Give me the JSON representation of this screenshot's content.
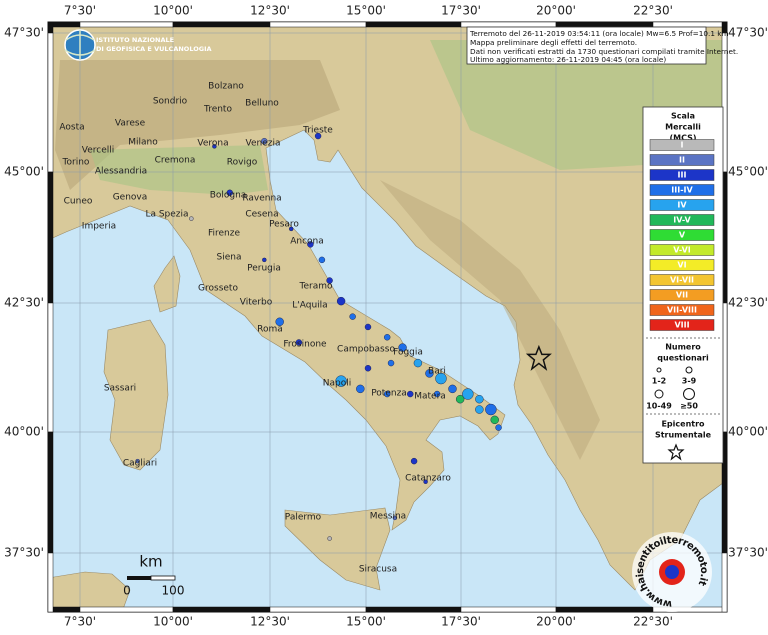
{
  "header": {
    "institute": [
      "ISTITUTO NAZIONALE",
      "DI GEOFISICA E VULCANOLOGIA"
    ]
  },
  "info": [
    "Terremoto del 26-11-2019 03:54:11 (ora locale) Mw=6.5 Prof=10.1 km",
    "Mappa preliminare degli effetti del terremoto.",
    "Dati non verificati estratti da 1730 questionari compilati tramite Internet.",
    "Ultimo aggiornamento: 26-11-2019 04:45 (ora locale)"
  ],
  "longitudes": [
    "7°30'",
    "10°00'",
    "12°30'",
    "15°00'",
    "17°30'",
    "20°00'",
    "22°30'"
  ],
  "latitudes": [
    "47°30'",
    "45°00'",
    "42°30'",
    "40°00'",
    "37°30'"
  ],
  "cities": [
    "Bolzano",
    "Trento",
    "Belluno",
    "Sondrio",
    "Aosta",
    "Varese",
    "Trieste",
    "Milano",
    "Verona",
    "Venezia",
    "Vercelli",
    "Torino",
    "Cremona",
    "Rovigo",
    "Alessandria",
    "Ravenna",
    "Bologna",
    "Cuneo",
    "Genova",
    "Cesena",
    "Pesaro",
    "La Spezia",
    "Imperia",
    "Firenze",
    "Ancona",
    "Siena",
    "Perugia",
    "Teramo",
    "Grosseto",
    "L'Aquila",
    "Viterbo",
    "Roma",
    "Frosinone",
    "Campobasso",
    "Foggia",
    "Bari",
    "Sassari",
    "Napoli",
    "Potenza",
    "Matera",
    "Cagliari",
    "Catanzaro",
    "Palermo",
    "Messina",
    "Siracusa"
  ],
  "legend": {
    "title": [
      "Scala",
      "Mercalli",
      "(MCS)"
    ],
    "levels": [
      {
        "label": "I",
        "color": "#b9b9b9"
      },
      {
        "label": "II",
        "color": "#5b74c4"
      },
      {
        "label": "III",
        "color": "#1c35c8"
      },
      {
        "label": "III-IV",
        "color": "#1f6fe8"
      },
      {
        "label": "IV",
        "color": "#27a3ee"
      },
      {
        "label": "IV-V",
        "color": "#21b85a"
      },
      {
        "label": "V",
        "color": "#2fdc34"
      },
      {
        "label": "V-VI",
        "color": "#c3ea2a"
      },
      {
        "label": "VI",
        "color": "#f3ec27"
      },
      {
        "label": "VI-VII",
        "color": "#f3c530"
      },
      {
        "label": "VII",
        "color": "#f39d22"
      },
      {
        "label": "VII-VIII",
        "color": "#f0651b"
      },
      {
        "label": "VIII",
        "color": "#e3241a"
      }
    ],
    "size_title": [
      "Numero",
      "questionari"
    ],
    "sizes": [
      "1-2",
      "3-9",
      "10-49",
      "≥50"
    ],
    "epicenter_title": [
      "Epicentro",
      "Strumentale"
    ]
  },
  "scale": {
    "unit": "km",
    "ticks": [
      "0",
      "100"
    ]
  },
  "watermark": "www.haisentitoilterremoto.it",
  "epicenter": {
    "lon": 19.45,
    "lat": 41.3
  },
  "points": [
    {
      "lon": 13.0,
      "lat": 43.8,
      "level": 2,
      "size": 0
    },
    {
      "lon": 13.5,
      "lat": 43.5,
      "level": 2,
      "size": 1
    },
    {
      "lon": 13.8,
      "lat": 43.2,
      "level": 3,
      "size": 1
    },
    {
      "lon": 14.0,
      "lat": 42.8,
      "level": 2,
      "size": 1
    },
    {
      "lon": 14.3,
      "lat": 42.4,
      "level": 2,
      "size": 2
    },
    {
      "lon": 14.6,
      "lat": 42.1,
      "level": 3,
      "size": 1
    },
    {
      "lon": 15.0,
      "lat": 41.9,
      "level": 2,
      "size": 1
    },
    {
      "lon": 15.5,
      "lat": 41.7,
      "level": 3,
      "size": 1
    },
    {
      "lon": 15.9,
      "lat": 41.5,
      "level": 3,
      "size": 2
    },
    {
      "lon": 16.3,
      "lat": 41.2,
      "level": 4,
      "size": 2
    },
    {
      "lon": 16.6,
      "lat": 41.0,
      "level": 3,
      "size": 2
    },
    {
      "lon": 16.9,
      "lat": 40.9,
      "level": 4,
      "size": 3
    },
    {
      "lon": 17.2,
      "lat": 40.7,
      "level": 3,
      "size": 2
    },
    {
      "lon": 17.6,
      "lat": 40.6,
      "level": 4,
      "size": 3
    },
    {
      "lon": 17.9,
      "lat": 40.5,
      "level": 4,
      "size": 2
    },
    {
      "lon": 18.2,
      "lat": 40.3,
      "level": 3,
      "size": 3
    },
    {
      "lon": 18.3,
      "lat": 40.1,
      "level": 5,
      "size": 2
    },
    {
      "lon": 18.4,
      "lat": 39.95,
      "level": 3,
      "size": 1
    },
    {
      "lon": 17.9,
      "lat": 40.3,
      "level": 4,
      "size": 2
    },
    {
      "lon": 17.4,
      "lat": 40.5,
      "level": 5,
      "size": 2
    },
    {
      "lon": 16.8,
      "lat": 40.6,
      "level": 3,
      "size": 1
    },
    {
      "lon": 16.1,
      "lat": 40.6,
      "level": 2,
      "size": 1
    },
    {
      "lon": 15.5,
      "lat": 40.6,
      "level": 3,
      "size": 1
    },
    {
      "lon": 14.8,
      "lat": 40.7,
      "level": 3,
      "size": 2
    },
    {
      "lon": 14.3,
      "lat": 40.85,
      "level": 4,
      "size": 3
    },
    {
      "lon": 15.0,
      "lat": 41.1,
      "level": 2,
      "size": 1
    },
    {
      "lon": 15.6,
      "lat": 41.2,
      "level": 3,
      "size": 1
    },
    {
      "lon": 13.2,
      "lat": 41.6,
      "level": 2,
      "size": 1
    },
    {
      "lon": 12.7,
      "lat": 42.0,
      "level": 3,
      "size": 2
    },
    {
      "lon": 12.3,
      "lat": 43.2,
      "level": 2,
      "size": 0
    },
    {
      "lon": 11.4,
      "lat": 44.5,
      "level": 2,
      "size": 1
    },
    {
      "lon": 11.0,
      "lat": 45.4,
      "level": 2,
      "size": 0
    },
    {
      "lon": 12.3,
      "lat": 45.5,
      "level": 1,
      "size": 1
    },
    {
      "lon": 13.7,
      "lat": 45.6,
      "level": 2,
      "size": 1
    },
    {
      "lon": 10.4,
      "lat": 44.0,
      "level": 0,
      "size": 0
    },
    {
      "lon": 16.2,
      "lat": 39.3,
      "level": 2,
      "size": 1
    },
    {
      "lon": 16.5,
      "lat": 38.9,
      "level": 2,
      "size": 0
    },
    {
      "lon": 15.7,
      "lat": 38.2,
      "level": 1,
      "size": 0
    },
    {
      "lon": 14.0,
      "lat": 37.8,
      "level": 0,
      "size": 0
    },
    {
      "lon": 9.0,
      "lat": 39.3,
      "level": 1,
      "size": 0
    }
  ]
}
